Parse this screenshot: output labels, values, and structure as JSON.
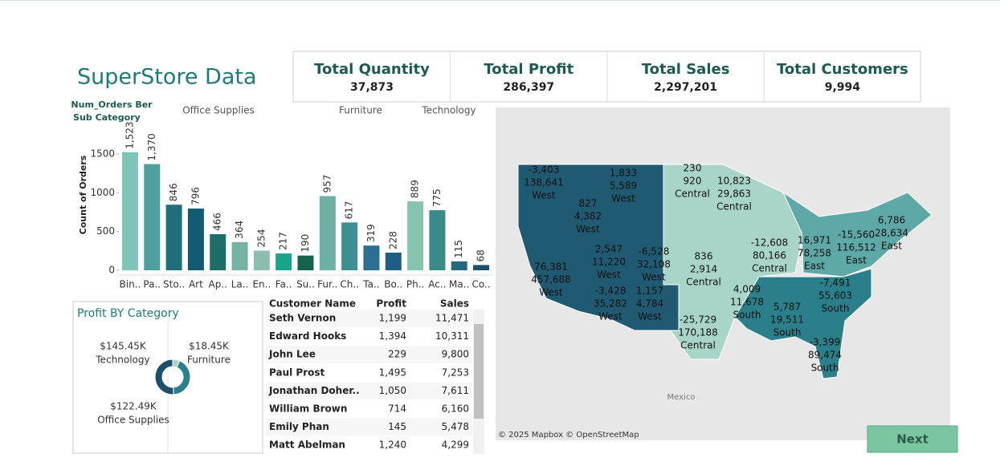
{
  "header": {
    "title": "SuperStore Data"
  },
  "kpis": [
    {
      "label": "Total Quantity",
      "value": "37,873"
    },
    {
      "label": "Total Profit",
      "value": "286,397"
    },
    {
      "label": "Total Sales",
      "value": "2,297,201"
    },
    {
      "label": "Total Customers",
      "value": "9,994"
    }
  ],
  "chart_data": [
    {
      "type": "bar",
      "title": "Num_Orders Ber Sub Category",
      "y_label": "Count of Orders",
      "groups": [
        "Office Supplies",
        "Furniture",
        "Technology"
      ],
      "categories": [
        "Bin..",
        "Pa..",
        "Sto..",
        "Art",
        "Ap..",
        "La..",
        "En..",
        "Fa..",
        "Su..",
        "Fur..",
        "Ch..",
        "Ta..",
        "Bo..",
        "Ph..",
        "Ac..",
        "Ma..",
        "Co.."
      ],
      "values": [
        1523,
        1370,
        846,
        796,
        466,
        364,
        254,
        217,
        190,
        957,
        617,
        319,
        228,
        889,
        775,
        115,
        68
      ],
      "value_labels": [
        "1,523",
        "1,370",
        "846",
        "796",
        "466",
        "364",
        "254",
        "217",
        "190",
        "957",
        "617",
        "319",
        "228",
        "889",
        "775",
        "115",
        "68"
      ],
      "colors": [
        "#7fc4b8",
        "#4e9f9e",
        "#1f6e7e",
        "#155a73",
        "#1d6e6b",
        "#76b3a5",
        "#8dbdb0",
        "#1ba28a",
        "#17614f",
        "#6db1a5",
        "#3d8f94",
        "#2d6f90",
        "#1f5d82",
        "#86c4b0",
        "#3a8a8a",
        "#236a80",
        "#1d4f6b"
      ],
      "ylim": [
        0,
        1650
      ],
      "yticks": [
        0,
        500,
        1000,
        1500
      ]
    },
    {
      "type": "pie",
      "title": "Profit BY Category",
      "categories": [
        "Furniture",
        "Office Supplies",
        "Technology"
      ],
      "values": [
        18.45,
        122.49,
        145.45
      ],
      "value_labels": [
        "$18.45K",
        "$122.49K",
        "$145.45K"
      ],
      "colors": [
        "#a8d5c7",
        "#2b7f8a",
        "#1d4f6b"
      ]
    }
  ],
  "table": {
    "columns": [
      "Customer Name",
      "Profit",
      "Sales"
    ],
    "rows": [
      [
        "Seth Vernon",
        "1,199",
        "11,471"
      ],
      [
        "Edward Hooks",
        "1,394",
        "10,311"
      ],
      [
        "John Lee",
        "229",
        "9,800"
      ],
      [
        "Paul Prost",
        "1,495",
        "7,253"
      ],
      [
        "Jonathan Doher..",
        "1,050",
        "7,611"
      ],
      [
        "William Brown",
        "714",
        "6,160"
      ],
      [
        "Emily Phan",
        "145",
        "5,478"
      ],
      [
        "Matt Abelman",
        "1,240",
        "4,299"
      ]
    ]
  },
  "map": {
    "attribution": "© 2025 Mapbox © OpenStreetMap",
    "place": "Mexico",
    "regions": [
      {
        "profit": "-3,403",
        "sales": "138,641",
        "region": "West"
      },
      {
        "profit": "1,833",
        "sales": "5,589",
        "region": "West"
      },
      {
        "profit": "827",
        "sales": "4,382",
        "region": "West"
      },
      {
        "profit": "230",
        "sales": "920",
        "region": "Central"
      },
      {
        "profit": "10,823",
        "sales": "29,863",
        "region": "Central"
      },
      {
        "profit": "2,547",
        "sales": "11,220",
        "region": "West"
      },
      {
        "profit": "-6,528",
        "sales": "32,108",
        "region": "West"
      },
      {
        "profit": "836",
        "sales": "2,914",
        "region": "Central"
      },
      {
        "profit": "-12,608",
        "sales": "80,166",
        "region": "Central"
      },
      {
        "profit": "16,971",
        "sales": "78,258",
        "region": "East"
      },
      {
        "profit": "-15,560",
        "sales": "116,512",
        "region": "East"
      },
      {
        "profit": "6,786",
        "sales": "28,634",
        "region": "East"
      },
      {
        "profit": "76,381",
        "sales": "457,688",
        "region": "West"
      },
      {
        "profit": "-3,428",
        "sales": "35,282",
        "region": "West"
      },
      {
        "profit": "1,157",
        "sales": "4,784",
        "region": "West"
      },
      {
        "profit": "4,009",
        "sales": "11,678",
        "region": "South"
      },
      {
        "profit": "-7,491",
        "sales": "55,603",
        "region": "South"
      },
      {
        "profit": "5,787",
        "sales": "19,511",
        "region": "South"
      },
      {
        "profit": "-25,729",
        "sales": "170,188",
        "region": "Central"
      },
      {
        "profit": "-3,399",
        "sales": "89,474",
        "region": "South"
      }
    ]
  },
  "button": {
    "label": "Next"
  }
}
